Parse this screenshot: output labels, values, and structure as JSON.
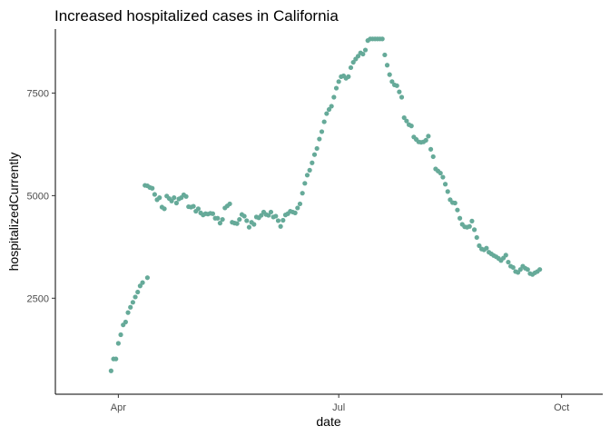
{
  "chart_data": {
    "type": "scatter",
    "title": "Increased hospitalized cases in California",
    "xlabel": "date",
    "ylabel": "hospitalizedCurrently",
    "x_ticks": [
      {
        "label": "Apr",
        "date": "2020-04-01"
      },
      {
        "label": "Jul",
        "date": "2020-07-01"
      },
      {
        "label": "Oct",
        "date": "2020-10-01"
      }
    ],
    "y_ticks": [
      2500,
      5000,
      7500
    ],
    "xlim": [
      "2020-03-06",
      "2020-10-18"
    ],
    "ylim": [
      160,
      9060
    ],
    "grid": false,
    "point_color": "#66AA99",
    "series": [
      {
        "points": [
          [
            "2020-03-29",
            730
          ],
          [
            "2020-03-30",
            1020
          ],
          [
            "2020-03-31",
            1020
          ],
          [
            "2020-04-01",
            1400
          ],
          [
            "2020-04-02",
            1610
          ],
          [
            "2020-04-03",
            1850
          ],
          [
            "2020-04-04",
            1920
          ],
          [
            "2020-04-05",
            2150
          ],
          [
            "2020-04-06",
            2280
          ],
          [
            "2020-04-07",
            2400
          ],
          [
            "2020-04-08",
            2530
          ],
          [
            "2020-04-09",
            2650
          ],
          [
            "2020-04-10",
            2800
          ],
          [
            "2020-04-11",
            2880
          ],
          [
            "2020-04-13",
            3000
          ],
          [
            "2020-04-12",
            5250
          ],
          [
            "2020-04-13",
            5240
          ],
          [
            "2020-04-14",
            5200
          ],
          [
            "2020-04-15",
            5180
          ],
          [
            "2020-04-16",
            5030
          ],
          [
            "2020-04-17",
            4900
          ],
          [
            "2020-04-18",
            4950
          ],
          [
            "2020-04-19",
            4720
          ],
          [
            "2020-04-20",
            4680
          ],
          [
            "2020-04-21",
            4990
          ],
          [
            "2020-04-22",
            4930
          ],
          [
            "2020-04-23",
            4870
          ],
          [
            "2020-04-24",
            4950
          ],
          [
            "2020-04-25",
            4820
          ],
          [
            "2020-04-26",
            4920
          ],
          [
            "2020-04-27",
            4950
          ],
          [
            "2020-04-28",
            5020
          ],
          [
            "2020-04-29",
            4980
          ],
          [
            "2020-04-30",
            4730
          ],
          [
            "2020-05-01",
            4720
          ],
          [
            "2020-05-02",
            4740
          ],
          [
            "2020-05-03",
            4620
          ],
          [
            "2020-05-04",
            4680
          ],
          [
            "2020-05-05",
            4580
          ],
          [
            "2020-05-06",
            4530
          ],
          [
            "2020-05-07",
            4560
          ],
          [
            "2020-05-08",
            4550
          ],
          [
            "2020-05-09",
            4570
          ],
          [
            "2020-05-10",
            4560
          ],
          [
            "2020-05-11",
            4450
          ],
          [
            "2020-05-12",
            4450
          ],
          [
            "2020-05-13",
            4330
          ],
          [
            "2020-05-14",
            4420
          ],
          [
            "2020-05-15",
            4700
          ],
          [
            "2020-05-16",
            4750
          ],
          [
            "2020-05-17",
            4800
          ],
          [
            "2020-05-18",
            4350
          ],
          [
            "2020-05-19",
            4330
          ],
          [
            "2020-05-20",
            4320
          ],
          [
            "2020-05-21",
            4420
          ],
          [
            "2020-05-22",
            4540
          ],
          [
            "2020-05-23",
            4500
          ],
          [
            "2020-05-24",
            4390
          ],
          [
            "2020-05-25",
            4230
          ],
          [
            "2020-05-26",
            4350
          ],
          [
            "2020-05-27",
            4300
          ],
          [
            "2020-05-28",
            4480
          ],
          [
            "2020-05-29",
            4460
          ],
          [
            "2020-05-30",
            4520
          ],
          [
            "2020-05-31",
            4600
          ],
          [
            "2020-06-01",
            4540
          ],
          [
            "2020-06-02",
            4520
          ],
          [
            "2020-06-03",
            4600
          ],
          [
            "2020-06-04",
            4480
          ],
          [
            "2020-06-05",
            4500
          ],
          [
            "2020-06-06",
            4390
          ],
          [
            "2020-06-07",
            4250
          ],
          [
            "2020-06-08",
            4400
          ],
          [
            "2020-06-09",
            4530
          ],
          [
            "2020-06-10",
            4560
          ],
          [
            "2020-06-11",
            4620
          ],
          [
            "2020-06-12",
            4600
          ],
          [
            "2020-06-13",
            4580
          ],
          [
            "2020-06-14",
            4700
          ],
          [
            "2020-06-15",
            4800
          ],
          [
            "2020-06-16",
            5060
          ],
          [
            "2020-06-17",
            5300
          ],
          [
            "2020-06-18",
            5500
          ],
          [
            "2020-06-19",
            5620
          ],
          [
            "2020-06-20",
            5800
          ],
          [
            "2020-06-21",
            6000
          ],
          [
            "2020-06-22",
            6150
          ],
          [
            "2020-06-23",
            6380
          ],
          [
            "2020-06-24",
            6560
          ],
          [
            "2020-06-25",
            6800
          ],
          [
            "2020-06-26",
            7000
          ],
          [
            "2020-06-27",
            7100
          ],
          [
            "2020-06-28",
            7180
          ],
          [
            "2020-06-29",
            7400
          ],
          [
            "2020-06-30",
            7620
          ],
          [
            "2020-07-01",
            7780
          ],
          [
            "2020-07-02",
            7900
          ],
          [
            "2020-07-03",
            7920
          ],
          [
            "2020-07-04",
            7860
          ],
          [
            "2020-07-05",
            7900
          ],
          [
            "2020-07-06",
            8120
          ],
          [
            "2020-07-07",
            8250
          ],
          [
            "2020-07-08",
            8330
          ],
          [
            "2020-07-09",
            8400
          ],
          [
            "2020-07-10",
            8480
          ],
          [
            "2020-07-11",
            8450
          ],
          [
            "2020-07-12",
            8550
          ],
          [
            "2020-07-13",
            8780
          ],
          [
            "2020-07-14",
            8820
          ],
          [
            "2020-07-15",
            8820
          ],
          [
            "2020-07-16",
            8820
          ],
          [
            "2020-07-17",
            8820
          ],
          [
            "2020-07-18",
            8820
          ],
          [
            "2020-07-19",
            8820
          ],
          [
            "2020-07-20",
            8430
          ],
          [
            "2020-07-21",
            8180
          ],
          [
            "2020-07-22",
            7950
          ],
          [
            "2020-07-23",
            7780
          ],
          [
            "2020-07-24",
            7700
          ],
          [
            "2020-07-25",
            7680
          ],
          [
            "2020-07-26",
            7530
          ],
          [
            "2020-07-27",
            7400
          ],
          [
            "2020-07-28",
            6900
          ],
          [
            "2020-07-29",
            6820
          ],
          [
            "2020-07-30",
            6730
          ],
          [
            "2020-07-31",
            6700
          ],
          [
            "2020-08-01",
            6430
          ],
          [
            "2020-08-02",
            6370
          ],
          [
            "2020-08-03",
            6310
          ],
          [
            "2020-08-04",
            6300
          ],
          [
            "2020-08-05",
            6310
          ],
          [
            "2020-08-06",
            6350
          ],
          [
            "2020-08-07",
            6450
          ],
          [
            "2020-08-08",
            6130
          ],
          [
            "2020-08-09",
            5950
          ],
          [
            "2020-08-10",
            5650
          ],
          [
            "2020-08-11",
            5600
          ],
          [
            "2020-08-12",
            5550
          ],
          [
            "2020-08-13",
            5450
          ],
          [
            "2020-08-14",
            5280
          ],
          [
            "2020-08-15",
            5100
          ],
          [
            "2020-08-16",
            4900
          ],
          [
            "2020-08-17",
            4830
          ],
          [
            "2020-08-18",
            4820
          ],
          [
            "2020-08-19",
            4650
          ],
          [
            "2020-08-20",
            4450
          ],
          [
            "2020-08-21",
            4300
          ],
          [
            "2020-08-22",
            4240
          ],
          [
            "2020-08-23",
            4230
          ],
          [
            "2020-08-24",
            4250
          ],
          [
            "2020-08-25",
            4380
          ],
          [
            "2020-08-26",
            4170
          ],
          [
            "2020-08-27",
            3980
          ],
          [
            "2020-08-28",
            3780
          ],
          [
            "2020-08-29",
            3700
          ],
          [
            "2020-08-30",
            3680
          ],
          [
            "2020-08-31",
            3720
          ],
          [
            "2020-09-01",
            3620
          ],
          [
            "2020-09-02",
            3580
          ],
          [
            "2020-09-03",
            3540
          ],
          [
            "2020-09-04",
            3510
          ],
          [
            "2020-09-05",
            3470
          ],
          [
            "2020-09-06",
            3420
          ],
          [
            "2020-09-07",
            3480
          ],
          [
            "2020-09-08",
            3550
          ],
          [
            "2020-09-09",
            3380
          ],
          [
            "2020-09-10",
            3280
          ],
          [
            "2020-09-11",
            3250
          ],
          [
            "2020-09-12",
            3150
          ],
          [
            "2020-09-13",
            3130
          ],
          [
            "2020-09-14",
            3200
          ],
          [
            "2020-09-15",
            3280
          ],
          [
            "2020-09-16",
            3230
          ],
          [
            "2020-09-17",
            3200
          ],
          [
            "2020-09-18",
            3100
          ],
          [
            "2020-09-19",
            3080
          ],
          [
            "2020-09-20",
            3120
          ],
          [
            "2020-09-21",
            3150
          ],
          [
            "2020-09-22",
            3200
          ]
        ]
      }
    ]
  }
}
